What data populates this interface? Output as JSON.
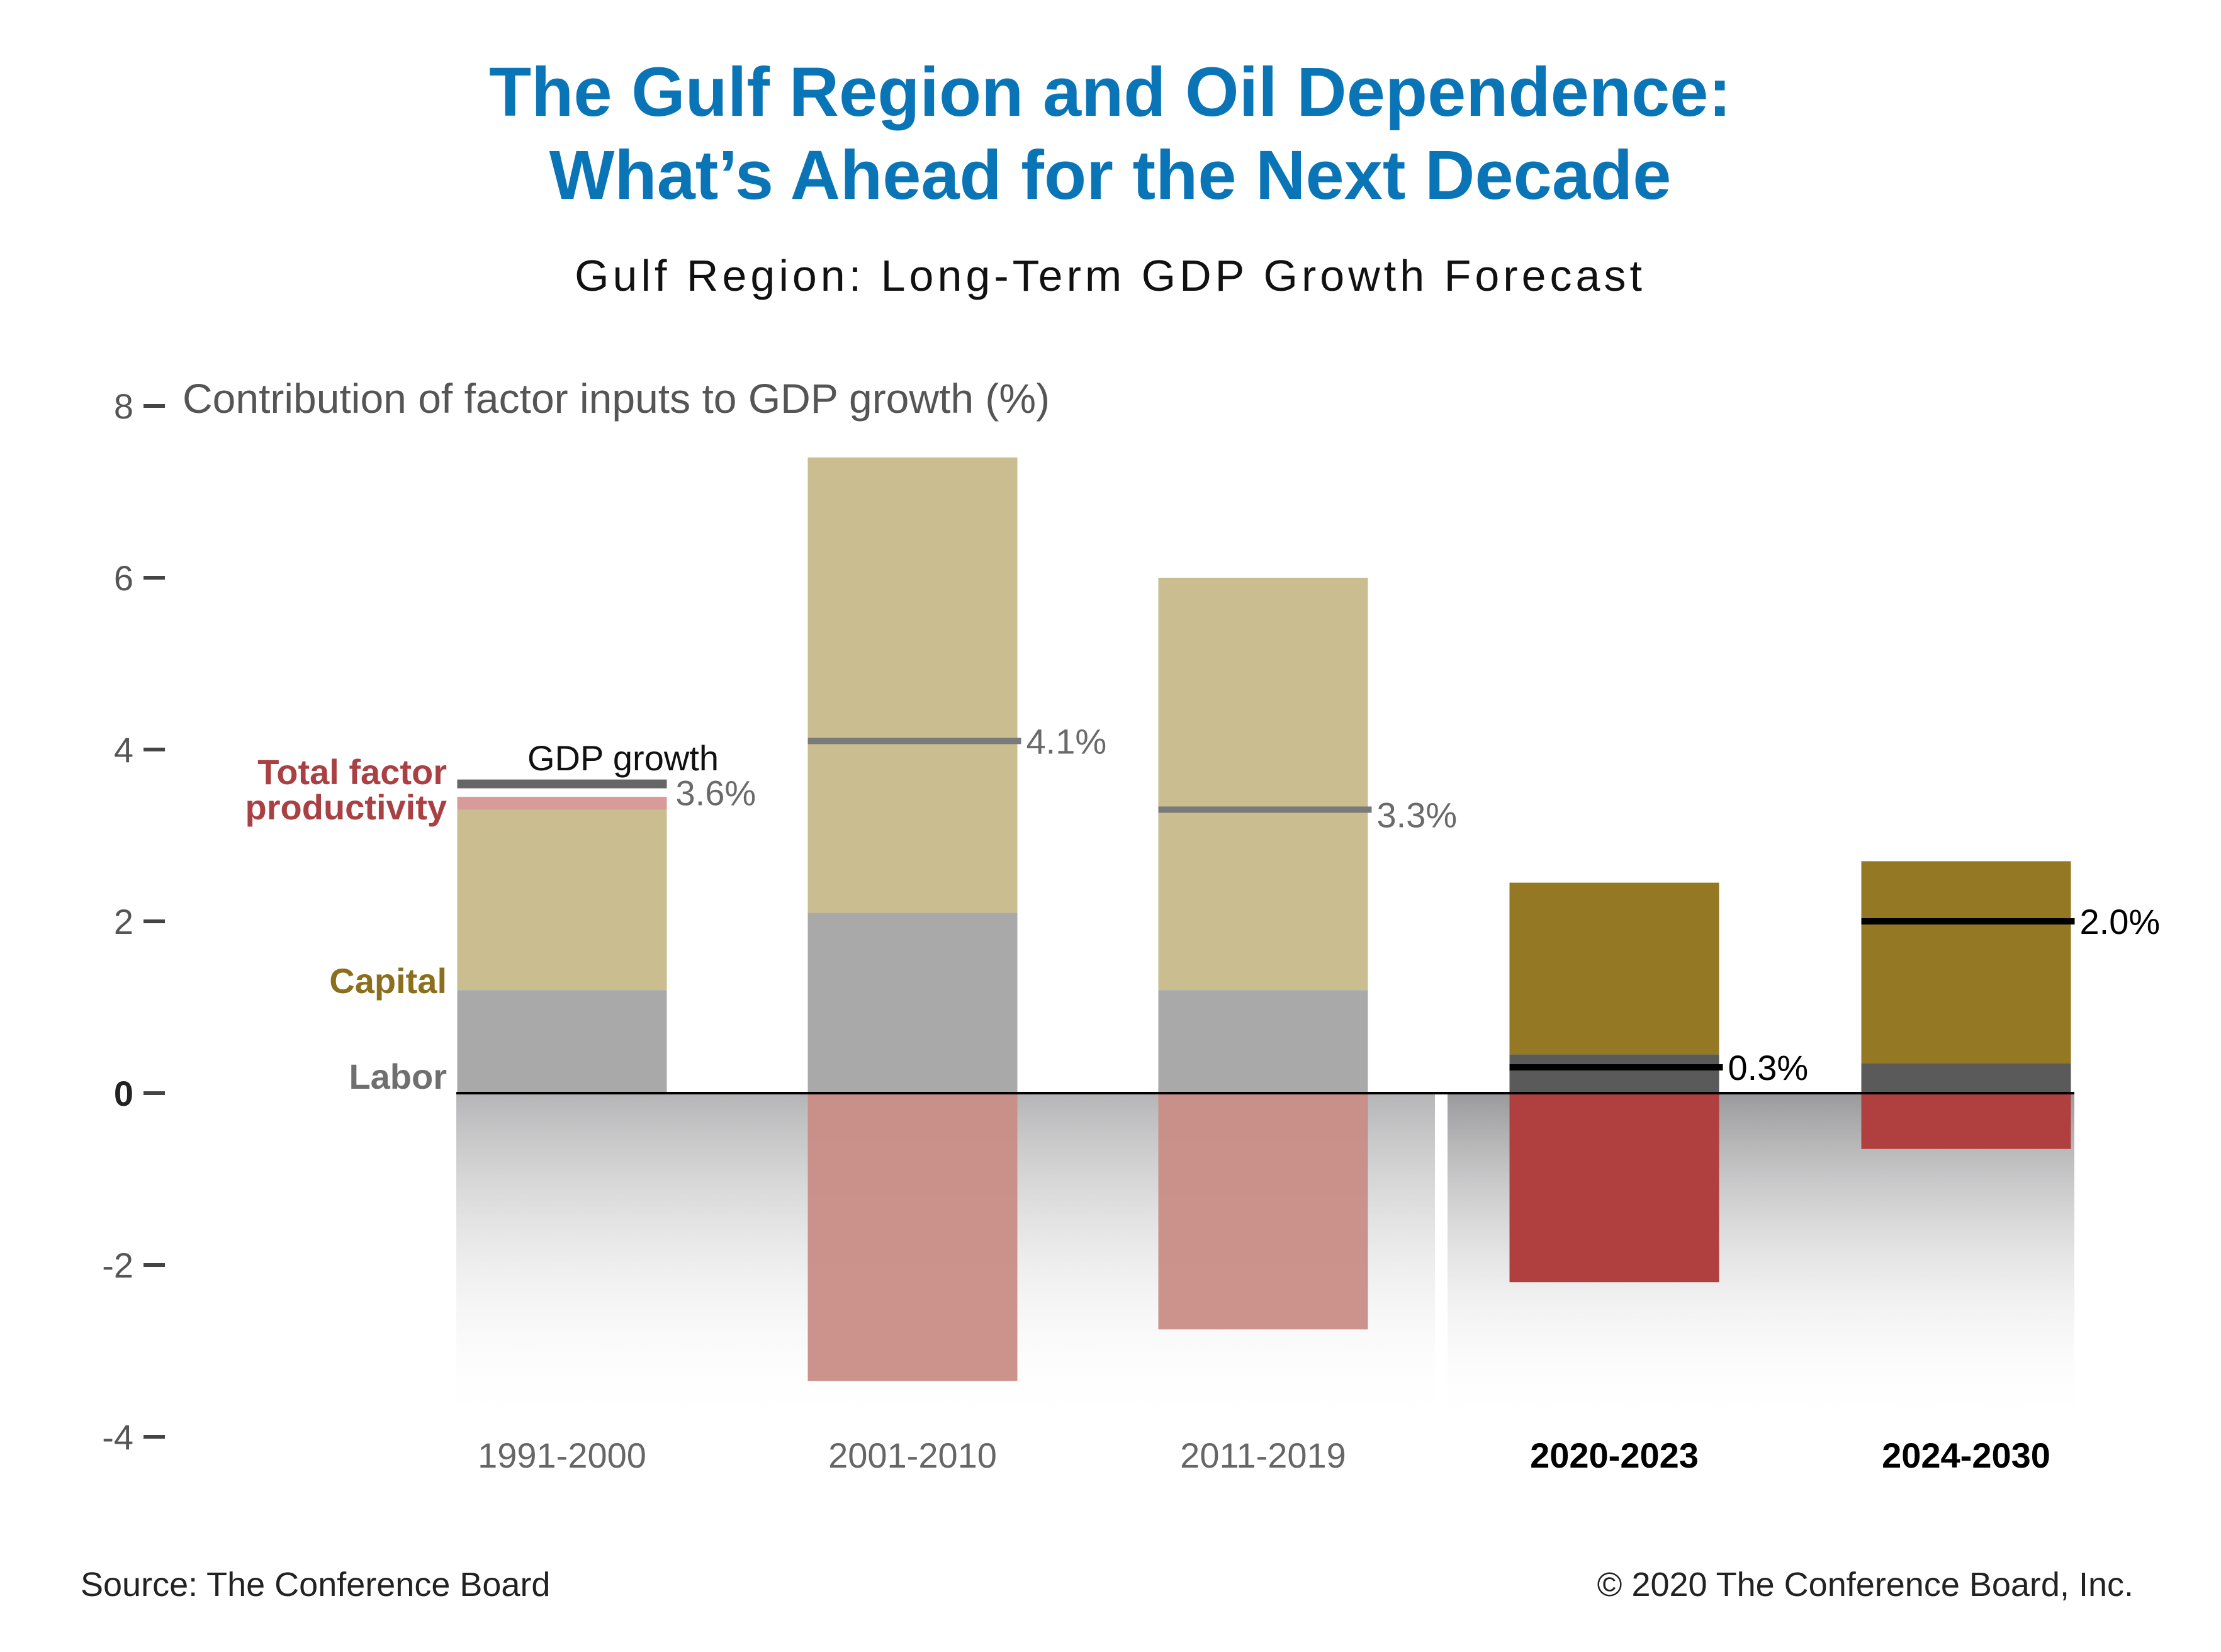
{
  "header": {
    "title_line1": "The Gulf Region and Oil Dependence:",
    "title_line2": "What’s Ahead for the Next Decade",
    "subtitle": "Gulf Region: Long-Term GDP Growth Forecast"
  },
  "footer": {
    "source": "Source: The Conference Board",
    "copyright": "© 2020 The Conference Board, Inc."
  },
  "legend_labels": {
    "gdp_growth": "GDP growth",
    "tfp_line1": "Total factor",
    "tfp_line2": "productivity",
    "capital": "Capital",
    "labor": "Labor"
  },
  "colors": {
    "title": "#0a75b6",
    "tfp_label": "#a94144",
    "capital_label": "#8b6f1d",
    "labor_label": "#6f6f6f",
    "hist_capital": "#cabd8f",
    "hist_labor": "#a9a9a9",
    "hist_tfp": "#c98c86",
    "fc_capital": "#957823",
    "fc_labor": "#5a5a5a",
    "fc_tfp": "#b04040",
    "hist_gdp_line": "#7a7a7a",
    "fc_gdp_line": "#000000"
  },
  "chart_data": {
    "type": "bar",
    "stacked": true,
    "ylabel": "Contribution of factor inputs to GDP growth (%)",
    "ylim": [
      -4,
      8
    ],
    "yticks": [
      -4,
      -2,
      0,
      2,
      4,
      6,
      8
    ],
    "categories": [
      "1991-2000",
      "2001-2010",
      "2011-2019",
      "2020-2023",
      "2024-2030"
    ],
    "forecast_from_index": 3,
    "series": [
      {
        "name": "Labor",
        "values": [
          1.2,
          2.1,
          1.2,
          0.45,
          0.35
        ]
      },
      {
        "name": "Capital",
        "values": [
          2.1,
          5.3,
          4.8,
          2.0,
          2.35
        ]
      },
      {
        "name": "Total factor productivity",
        "values": [
          0.15,
          -3.35,
          -2.75,
          -2.2,
          -0.65
        ]
      }
    ],
    "gdp_growth": [
      3.6,
      4.1,
      3.3,
      0.3,
      2.0
    ],
    "gdp_labels": [
      "3.6%",
      "4.1%",
      "3.3%",
      "0.3%",
      "2.0%"
    ]
  }
}
